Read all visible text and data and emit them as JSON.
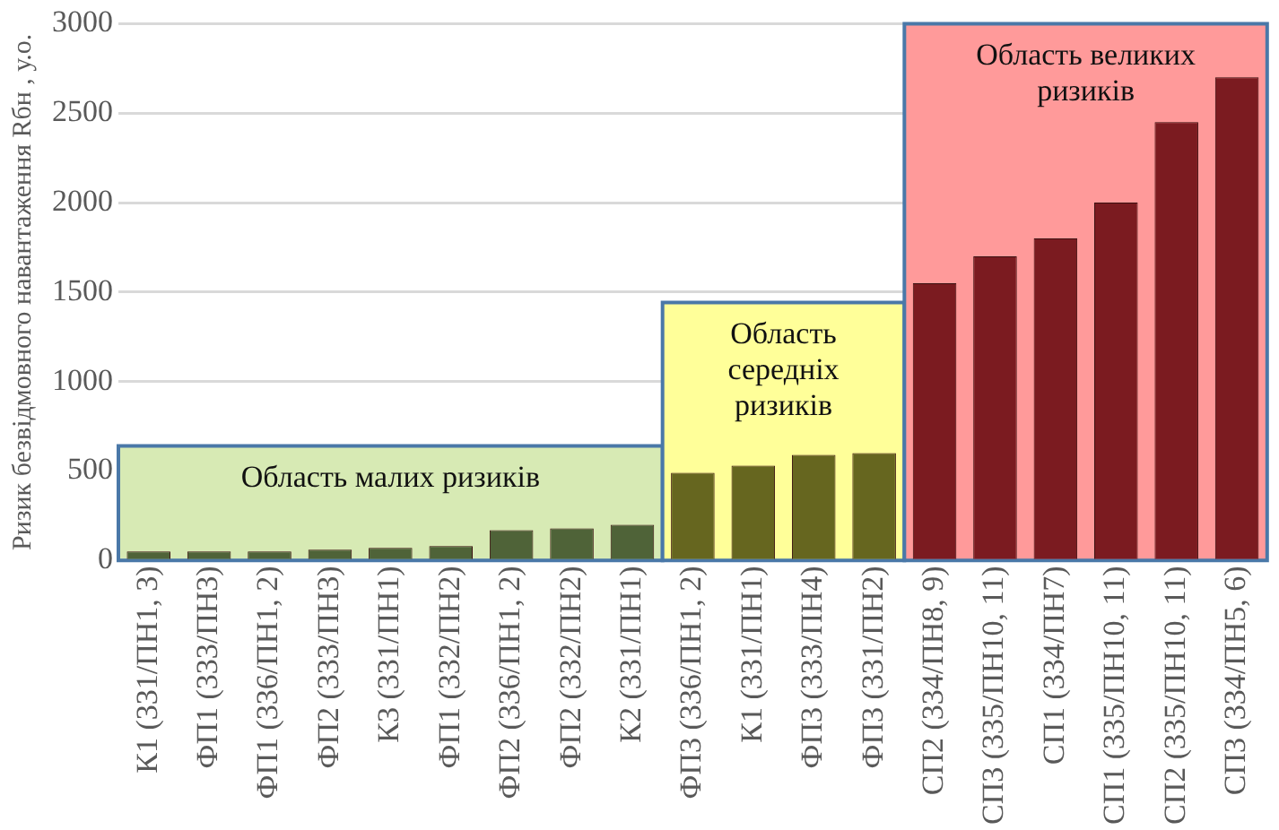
{
  "chart_data": {
    "type": "bar",
    "ylabel": "Ризик безвідмовного навантаження Rбн , у.о.",
    "categories": [
      "К1 (331/ПН1, 3)",
      "ФП1 (333/ПН3)",
      "ФП1 (336/ПН1, 2)",
      "ФП2 (333/ПН3)",
      "К3 (331/ПН1)",
      "ФП1 (332/ПН2)",
      "ФП2 (336/ПН1, 2)",
      "ФП2 (332/ПН2)",
      "К2 (331/ПН1)",
      "ФП3 (336/ПН1, 2)",
      "К1 (331/ПН1)",
      "ФП3 (333/ПН4)",
      "ФП3 (331/ПН2)",
      "СП2 (334/ПН8, 9)",
      "СП3 (335/ПН10, 11)",
      "СП1 (334/ПН7)",
      "СП1 (335/ПН10, 11)",
      "СП2 (335/ПН10, 11)",
      "СП3 (334/ПН5, 6)"
    ],
    "values": [
      50,
      50,
      50,
      60,
      70,
      80,
      170,
      180,
      200,
      490,
      530,
      590,
      600,
      1550,
      1700,
      1800,
      2000,
      2450,
      2700
    ],
    "colors": [
      "#4f6338",
      "#4f6338",
      "#4f6338",
      "#4f6338",
      "#4f6338",
      "#4f6338",
      "#4f6338",
      "#4f6338",
      "#4f6338",
      "#66661f",
      "#66661f",
      "#66661f",
      "#66661f",
      "#7b1b20",
      "#7b1b20",
      "#7b1b20",
      "#7b1b20",
      "#7b1b20",
      "#7b1b20"
    ],
    "ylim": [
      0,
      3000
    ],
    "yticks": [
      0,
      500,
      1000,
      1500,
      2000,
      2500,
      3000
    ],
    "grid": "y",
    "legend": false,
    "bands": [
      {
        "axis": "x",
        "from": "К1 (331/ПН1, 3)",
        "to": "К2 (331/ПН1)",
        "label": "Область малих ризиків",
        "color": "#d7eab4"
      },
      {
        "axis": "x",
        "from": "ФП3 (336/ПН1, 2)",
        "to": "ФП3 (331/ПН2)",
        "label": "Область середніх ризиків",
        "color": "#ffff99"
      },
      {
        "axis": "x",
        "from": "СП2 (334/ПН8, 9)",
        "to": "СП3 (334/ПН5, 6)",
        "label": "Область великих ризиків",
        "color": "#ff9a9a"
      }
    ]
  }
}
